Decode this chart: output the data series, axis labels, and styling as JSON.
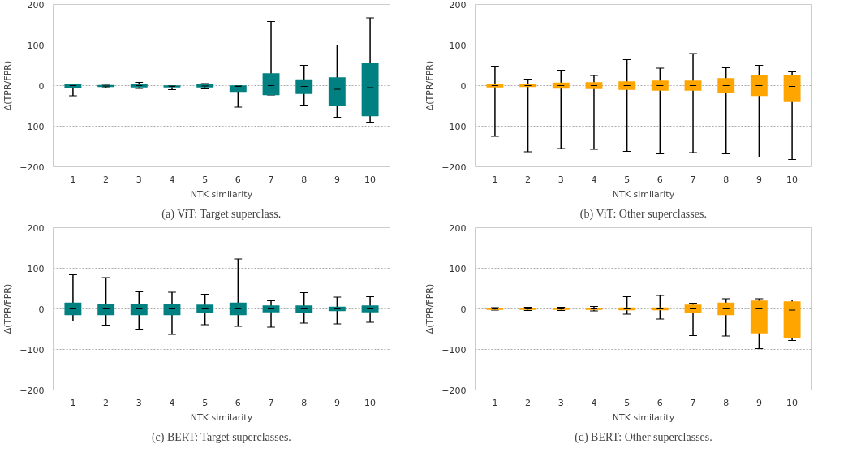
{
  "chart_data": [
    {
      "type": "box",
      "title": "(a) ViT: Target superclass.",
      "xlabel": "NTK similarity",
      "ylabel": "Δ(TPR/FPR)",
      "categories": [
        "1",
        "2",
        "3",
        "4",
        "5",
        "6",
        "7",
        "8",
        "9",
        "10"
      ],
      "color": "#008080",
      "ylim": [
        -200,
        200
      ],
      "yticks": [
        -200,
        -100,
        0,
        100,
        200
      ],
      "grid": "y",
      "boxes": [
        {
          "low": -25,
          "q1": -5,
          "median": 0,
          "q3": 3,
          "high": 3
        },
        {
          "low": -5,
          "q1": -3,
          "median": -1,
          "q3": 1,
          "high": 1
        },
        {
          "low": -7,
          "q1": -4,
          "median": 0,
          "q3": 4,
          "high": 8
        },
        {
          "low": -10,
          "q1": -4,
          "median": -2,
          "q3": 0,
          "high": 0
        },
        {
          "low": -8,
          "q1": -4,
          "median": -1,
          "q3": 3,
          "high": 5
        },
        {
          "low": -53,
          "q1": -15,
          "median": -2,
          "q3": 0,
          "high": 0
        },
        {
          "low": -23,
          "q1": -23,
          "median": 0,
          "q3": 30,
          "high": 158
        },
        {
          "low": -48,
          "q1": -20,
          "median": -2,
          "q3": 15,
          "high": 50
        },
        {
          "low": -78,
          "q1": -50,
          "median": -9,
          "q3": 20,
          "high": 100
        },
        {
          "low": -90,
          "q1": -75,
          "median": -5,
          "q3": 55,
          "high": 167
        }
      ]
    },
    {
      "type": "box",
      "title": "(b) ViT: Other superclasses.",
      "xlabel": "NTK similarity",
      "ylabel": "Δ(TPR/FPR)",
      "categories": [
        "1",
        "2",
        "3",
        "4",
        "5",
        "6",
        "7",
        "8",
        "9",
        "10"
      ],
      "color": "#ffa500",
      "ylim": [
        -200,
        200
      ],
      "yticks": [
        -200,
        -100,
        0,
        100,
        200
      ],
      "grid": "y",
      "boxes": [
        {
          "low": -125,
          "q1": -4,
          "median": 0,
          "q3": 4,
          "high": 48
        },
        {
          "low": -163,
          "q1": -3,
          "median": 0,
          "q3": 3,
          "high": 16
        },
        {
          "low": -155,
          "q1": -7,
          "median": 0,
          "q3": 7,
          "high": 38
        },
        {
          "low": -157,
          "q1": -8,
          "median": 0,
          "q3": 8,
          "high": 25
        },
        {
          "low": -162,
          "q1": -10,
          "median": 0,
          "q3": 10,
          "high": 64
        },
        {
          "low": -168,
          "q1": -12,
          "median": 0,
          "q3": 12,
          "high": 43
        },
        {
          "low": -165,
          "q1": -12,
          "median": 0,
          "q3": 12,
          "high": 79
        },
        {
          "low": -168,
          "q1": -18,
          "median": 0,
          "q3": 18,
          "high": 44
        },
        {
          "low": -176,
          "q1": -25,
          "median": 0,
          "q3": 25,
          "high": 50
        },
        {
          "low": -182,
          "q1": -40,
          "median": -2,
          "q3": 25,
          "high": 34
        }
      ]
    },
    {
      "type": "box",
      "title": "(c) BERT: Target superclasses.",
      "xlabel": "NTK similarity",
      "ylabel": "Δ(TPR/FPR)",
      "categories": [
        "1",
        "2",
        "3",
        "4",
        "5",
        "6",
        "7",
        "8",
        "9",
        "10"
      ],
      "color": "#008080",
      "ylim": [
        -200,
        200
      ],
      "yticks": [
        -200,
        -100,
        0,
        100,
        200
      ],
      "grid": "y",
      "boxes": [
        {
          "low": -30,
          "q1": -15,
          "median": 0,
          "q3": 15,
          "high": 84
        },
        {
          "low": -40,
          "q1": -15,
          "median": 0,
          "q3": 12,
          "high": 77
        },
        {
          "low": -50,
          "q1": -15,
          "median": 0,
          "q3": 12,
          "high": 42
        },
        {
          "low": -63,
          "q1": -15,
          "median": 0,
          "q3": 12,
          "high": 41
        },
        {
          "low": -39,
          "q1": -10,
          "median": 0,
          "q3": 10,
          "high": 36
        },
        {
          "low": -43,
          "q1": -15,
          "median": 0,
          "q3": 15,
          "high": 123
        },
        {
          "low": -45,
          "q1": -8,
          "median": 0,
          "q3": 8,
          "high": 20
        },
        {
          "low": -35,
          "q1": -10,
          "median": 0,
          "q3": 8,
          "high": 40
        },
        {
          "low": -37,
          "q1": -5,
          "median": 0,
          "q3": 5,
          "high": 29
        },
        {
          "low": -33,
          "q1": -8,
          "median": 0,
          "q3": 8,
          "high": 30
        }
      ]
    },
    {
      "type": "box",
      "title": "(d) BERT: Other superclasses.",
      "xlabel": "NTK similarity",
      "ylabel": "Δ(TPR/FPR)",
      "categories": [
        "1",
        "2",
        "3",
        "4",
        "5",
        "6",
        "7",
        "8",
        "9",
        "10"
      ],
      "color": "#ffa500",
      "ylim": [
        -200,
        200
      ],
      "yticks": [
        -200,
        -100,
        0,
        100,
        200
      ],
      "grid": "y",
      "boxes": [
        {
          "low": -3,
          "q1": -2,
          "median": 0,
          "q3": 2,
          "high": 3
        },
        {
          "low": -4,
          "q1": -2,
          "median": 0,
          "q3": 2,
          "high": 4
        },
        {
          "low": -4,
          "q1": -2,
          "median": 0,
          "q3": 2,
          "high": 4
        },
        {
          "low": -5,
          "q1": -2,
          "median": 0,
          "q3": 2,
          "high": 6
        },
        {
          "low": -13,
          "q1": -3,
          "median": 0,
          "q3": 3,
          "high": 30
        },
        {
          "low": -25,
          "q1": -3,
          "median": 0,
          "q3": 3,
          "high": 33
        },
        {
          "low": -66,
          "q1": -10,
          "median": 0,
          "q3": 10,
          "high": 14
        },
        {
          "low": -67,
          "q1": -15,
          "median": 0,
          "q3": 15,
          "high": 25
        },
        {
          "low": -98,
          "q1": -60,
          "median": 0,
          "q3": 20,
          "high": 25
        },
        {
          "low": -78,
          "q1": -72,
          "median": -3,
          "q3": 18,
          "high": 22
        }
      ]
    }
  ]
}
